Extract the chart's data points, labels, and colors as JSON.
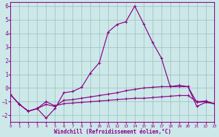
{
  "xlabel": "Windchill (Refroidissement éolien,°C)",
  "bg_color": "#cde8e8",
  "line_color": "#880088",
  "grid_color": "#99bbbb",
  "xlim": [
    0,
    23
  ],
  "ylim": [
    -2.5,
    6.3
  ],
  "xtick_labels": [
    "0",
    "1",
    "2",
    "3",
    "4",
    "5",
    "6",
    "7",
    "8",
    "9",
    "10",
    "11",
    "12",
    "13",
    "14",
    "15",
    "16",
    "17",
    "18",
    "19",
    "20",
    "21",
    "22",
    "23"
  ],
  "xtick_vals": [
    0,
    1,
    2,
    3,
    4,
    5,
    6,
    7,
    8,
    9,
    10,
    11,
    12,
    13,
    14,
    15,
    16,
    17,
    18,
    19,
    20,
    21,
    22,
    23
  ],
  "ytick_vals": [
    -2,
    -1,
    0,
    1,
    2,
    3,
    4,
    5,
    6
  ],
  "line1_x": [
    0,
    1,
    2,
    3,
    4,
    5,
    6,
    7,
    8,
    9,
    10,
    11,
    12,
    13,
    14,
    15,
    16,
    17,
    18,
    19,
    20,
    21,
    22,
    23
  ],
  "line1_y": [
    -0.5,
    -1.2,
    -1.7,
    -1.5,
    -2.2,
    -1.5,
    -0.35,
    -0.25,
    0.05,
    1.1,
    1.85,
    4.1,
    4.65,
    4.85,
    6.0,
    4.7,
    3.35,
    2.2,
    0.1,
    0.2,
    0.1,
    -1.35,
    -1.05,
    -1.15
  ],
  "line2_x": [
    0,
    1,
    2,
    3,
    4,
    5,
    6,
    7,
    8,
    9,
    10,
    11,
    12,
    13,
    14,
    15,
    16,
    17,
    18,
    19,
    20,
    21,
    22,
    23
  ],
  "line2_y": [
    -0.5,
    -1.2,
    -1.7,
    -1.5,
    -1.2,
    -1.35,
    -0.9,
    -0.85,
    -0.75,
    -0.65,
    -0.55,
    -0.45,
    -0.35,
    -0.2,
    -0.1,
    0.0,
    0.05,
    0.1,
    0.1,
    0.1,
    0.1,
    -1.05,
    -1.0,
    -1.15
  ],
  "line3_x": [
    0,
    1,
    2,
    3,
    4,
    5,
    6,
    7,
    8,
    9,
    10,
    11,
    12,
    13,
    14,
    15,
    16,
    17,
    18,
    19,
    20,
    21,
    22,
    23
  ],
  "line3_y": [
    -0.5,
    -1.2,
    -1.7,
    -1.5,
    -1.0,
    -1.3,
    -1.15,
    -1.1,
    -1.05,
    -1.0,
    -0.95,
    -0.9,
    -0.85,
    -0.8,
    -0.75,
    -0.75,
    -0.7,
    -0.65,
    -0.6,
    -0.55,
    -0.55,
    -1.0,
    -0.95,
    -1.15
  ]
}
